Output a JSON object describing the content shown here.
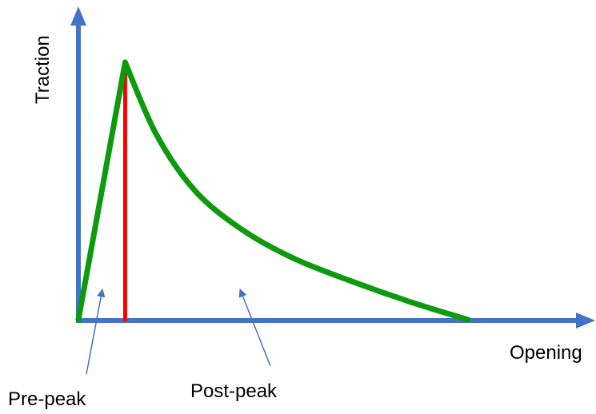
{
  "chart_data": {
    "type": "line",
    "title": "",
    "xlabel": "Opening",
    "ylabel": "Traction",
    "grid": false,
    "series": [
      {
        "segment": "pre-peak",
        "x": [
          0,
          0.12
        ],
        "y": [
          0,
          1.0
        ]
      },
      {
        "segment": "post-peak",
        "x": [
          0.12,
          0.2,
          0.3,
          0.42,
          0.55,
          0.7,
          0.85,
          1.0
        ],
        "y": [
          1.0,
          0.72,
          0.5,
          0.35,
          0.24,
          0.15,
          0.07,
          0.0
        ]
      }
    ],
    "peak_line": {
      "x": 0.12
    },
    "annotations": [
      {
        "text": "Pre-peak",
        "region": "pre-peak"
      },
      {
        "text": "Post-peak",
        "region": "post-peak"
      }
    ]
  },
  "colors": {
    "axis": "#4472C4",
    "curve": "#0E9A0E",
    "peak_line": "#FF0000",
    "annotation_arrow": "#4472C4"
  }
}
